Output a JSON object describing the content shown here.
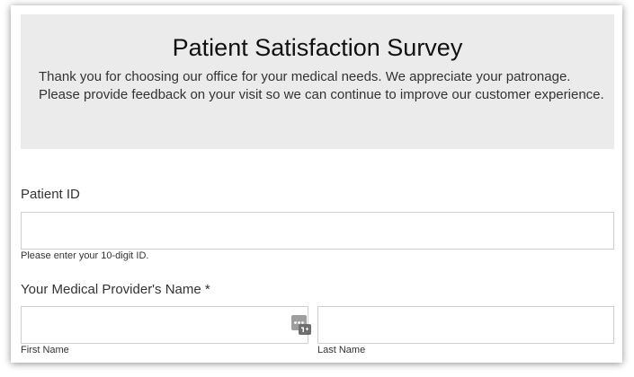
{
  "survey": {
    "title": "Patient Satisfaction Survey",
    "intro": "Thank you for choosing our office for your medical needs. We appreciate your patronage. Please provide feedback on your visit so we can continue to improve our customer experience."
  },
  "patient_id": {
    "label": "Patient ID",
    "value": "",
    "hint": "Please enter your 10-digit ID."
  },
  "provider_name": {
    "label": "Your Medical Provider's Name *",
    "first_name_value": "",
    "first_name_sublabel": "First Name",
    "last_name_value": "",
    "last_name_sublabel": "Last Name"
  },
  "icons": {
    "autofill": "password-manager-autofill-icon"
  }
}
